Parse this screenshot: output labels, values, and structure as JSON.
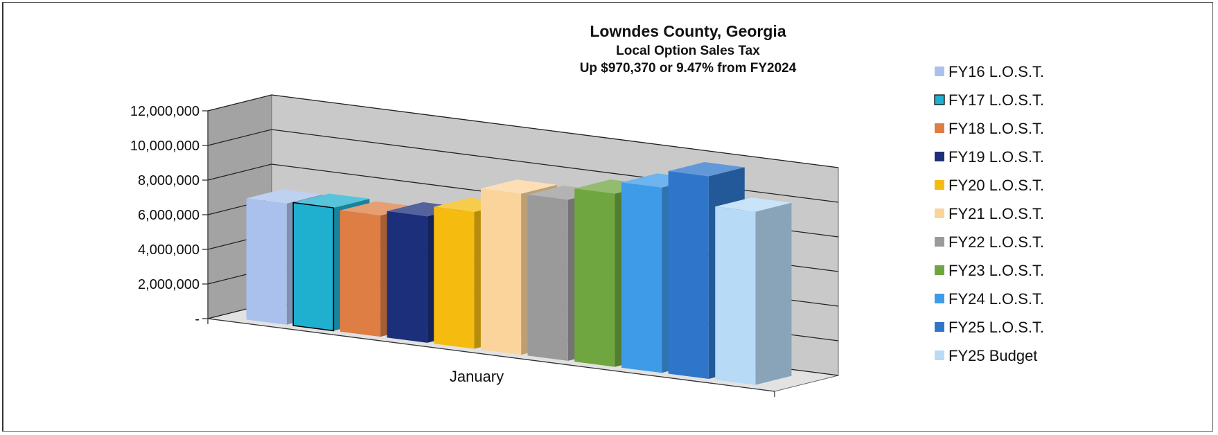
{
  "chart_data": {
    "type": "bar",
    "title": "Lowndes County, Georgia",
    "subtitle_lines": [
      "Local Option Sales Tax",
      "Up $970,370 or 9.47% from FY2024"
    ],
    "categories": [
      "January"
    ],
    "yticks": [
      "12,000,000",
      "10,000,000",
      "8,000,000",
      "6,000,000",
      "4,000,000",
      "2,000,000",
      "-"
    ],
    "ylim": [
      0,
      12000000
    ],
    "grid": true,
    "legend_position": "right",
    "series": [
      {
        "name": "FY16 L.O.S.T.",
        "values": [
          7000000
        ],
        "color": "#a9c1ec"
      },
      {
        "name": "FY17 L.O.S.T.",
        "values": [
          7100000
        ],
        "color": "#1fb0cf"
      },
      {
        "name": "FY18 L.O.S.T.",
        "values": [
          7000000
        ],
        "color": "#de7d44"
      },
      {
        "name": "FY19 L.O.S.T.",
        "values": [
          7300000
        ],
        "color": "#1b2f7a"
      },
      {
        "name": "FY20 L.O.S.T.",
        "values": [
          7900000
        ],
        "color": "#f5bb0f"
      },
      {
        "name": "FY21 L.O.S.T.",
        "values": [
          9300000
        ],
        "color": "#fbd49c"
      },
      {
        "name": "FY22 L.O.S.T.",
        "values": [
          9300000
        ],
        "color": "#9a9a9a"
      },
      {
        "name": "FY23 L.O.S.T.",
        "values": [
          10000000
        ],
        "color": "#6fa63f"
      },
      {
        "name": "FY24 L.O.S.T.",
        "values": [
          10700000
        ],
        "color": "#3d9be8"
      },
      {
        "name": "FY25 L.O.S.T.",
        "values": [
          11700000
        ],
        "color": "#2f76cb"
      },
      {
        "name": "FY25 Budget",
        "values": [
          10000000
        ],
        "color": "#b7daf7"
      }
    ]
  }
}
